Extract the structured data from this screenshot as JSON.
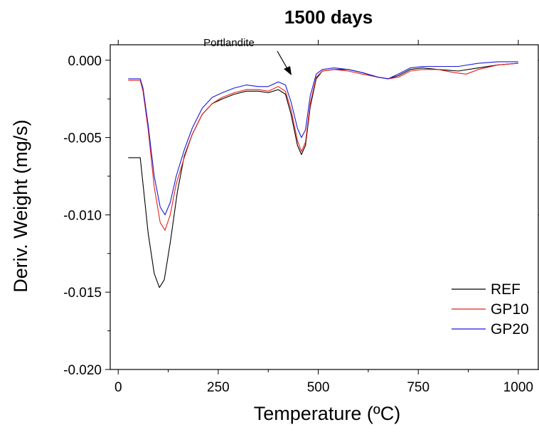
{
  "chart_data": {
    "type": "line",
    "title": "1500 days",
    "xlabel": "Temperature (ºC)",
    "ylabel": "Deriv. Weight (mg/s)",
    "xlim": [
      -20,
      1050
    ],
    "ylim": [
      -0.02,
      0.001
    ],
    "x_ticks": [
      0,
      250,
      500,
      750,
      1000
    ],
    "x_tick_labels": [
      "0",
      "250",
      "500",
      "750",
      "1000"
    ],
    "y_ticks": [
      0.0,
      -0.005,
      -0.01,
      -0.015,
      -0.02
    ],
    "y_tick_labels": [
      "0.000",
      "-0.005",
      "-0.010",
      "-0.015",
      "-0.020"
    ],
    "grid": false,
    "legend_position": "bottom-right",
    "annotation": {
      "text": "Portlandite",
      "x": 455,
      "y": -0.0016
    },
    "series": [
      {
        "name": "REF",
        "color": "#000000",
        "points": [
          [
            25,
            -0.0063
          ],
          [
            55,
            -0.0063
          ],
          [
            62,
            -0.008
          ],
          [
            75,
            -0.0112
          ],
          [
            90,
            -0.0138
          ],
          [
            103,
            -0.0147
          ],
          [
            115,
            -0.0142
          ],
          [
            130,
            -0.0118
          ],
          [
            148,
            -0.0085
          ],
          [
            165,
            -0.0062
          ],
          [
            185,
            -0.0048
          ],
          [
            210,
            -0.0035
          ],
          [
            235,
            -0.0028
          ],
          [
            260,
            -0.0025
          ],
          [
            290,
            -0.0022
          ],
          [
            320,
            -0.002
          ],
          [
            350,
            -0.002
          ],
          [
            375,
            -0.0021
          ],
          [
            400,
            -0.0019
          ],
          [
            418,
            -0.0022
          ],
          [
            432,
            -0.0035
          ],
          [
            448,
            -0.0055
          ],
          [
            458,
            -0.0061
          ],
          [
            468,
            -0.0055
          ],
          [
            480,
            -0.003
          ],
          [
            495,
            -0.0012
          ],
          [
            510,
            -0.0007
          ],
          [
            540,
            -0.0006
          ],
          [
            575,
            -0.0006
          ],
          [
            610,
            -0.0008
          ],
          [
            650,
            -0.0011
          ],
          [
            675,
            -0.0012
          ],
          [
            700,
            -0.001
          ],
          [
            730,
            -0.0006
          ],
          [
            760,
            -0.0005
          ],
          [
            800,
            -0.0006
          ],
          [
            850,
            -0.0007
          ],
          [
            900,
            -0.0005
          ],
          [
            950,
            -0.0003
          ],
          [
            1000,
            -0.0002
          ]
        ]
      },
      {
        "name": "GP10",
        "color": "#e8201a",
        "points": [
          [
            25,
            -0.0013
          ],
          [
            55,
            -0.0013
          ],
          [
            62,
            -0.002
          ],
          [
            75,
            -0.0045
          ],
          [
            90,
            -0.0082
          ],
          [
            105,
            -0.0105
          ],
          [
            117,
            -0.011
          ],
          [
            130,
            -0.01
          ],
          [
            145,
            -0.008
          ],
          [
            165,
            -0.0063
          ],
          [
            185,
            -0.0048
          ],
          [
            210,
            -0.0035
          ],
          [
            235,
            -0.0028
          ],
          [
            260,
            -0.0024
          ],
          [
            290,
            -0.0021
          ],
          [
            320,
            -0.0019
          ],
          [
            350,
            -0.0019
          ],
          [
            375,
            -0.002
          ],
          [
            400,
            -0.0017
          ],
          [
            418,
            -0.002
          ],
          [
            432,
            -0.0032
          ],
          [
            448,
            -0.0052
          ],
          [
            458,
            -0.0059
          ],
          [
            468,
            -0.0053
          ],
          [
            480,
            -0.0028
          ],
          [
            495,
            -0.0011
          ],
          [
            510,
            -0.0007
          ],
          [
            540,
            -0.0006
          ],
          [
            575,
            -0.0007
          ],
          [
            610,
            -0.0009
          ],
          [
            650,
            -0.0011
          ],
          [
            675,
            -0.0012
          ],
          [
            700,
            -0.0011
          ],
          [
            730,
            -0.0007
          ],
          [
            760,
            -0.0006
          ],
          [
            800,
            -0.0006
          ],
          [
            840,
            -0.0008
          ],
          [
            870,
            -0.0009
          ],
          [
            900,
            -0.0006
          ],
          [
            950,
            -0.0003
          ],
          [
            1000,
            -0.0002
          ]
        ]
      },
      {
        "name": "GP20",
        "color": "#1a1adb",
        "points": [
          [
            25,
            -0.0012
          ],
          [
            55,
            -0.0012
          ],
          [
            62,
            -0.0018
          ],
          [
            75,
            -0.0042
          ],
          [
            90,
            -0.0075
          ],
          [
            105,
            -0.0095
          ],
          [
            117,
            -0.01
          ],
          [
            130,
            -0.0092
          ],
          [
            145,
            -0.0075
          ],
          [
            165,
            -0.0058
          ],
          [
            185,
            -0.0044
          ],
          [
            210,
            -0.0031
          ],
          [
            235,
            -0.0024
          ],
          [
            260,
            -0.0021
          ],
          [
            290,
            -0.0018
          ],
          [
            320,
            -0.0016
          ],
          [
            350,
            -0.0017
          ],
          [
            375,
            -0.0017
          ],
          [
            400,
            -0.0014
          ],
          [
            418,
            -0.0016
          ],
          [
            432,
            -0.0027
          ],
          [
            448,
            -0.0044
          ],
          [
            458,
            -0.005
          ],
          [
            468,
            -0.0045
          ],
          [
            480,
            -0.0023
          ],
          [
            495,
            -0.0009
          ],
          [
            510,
            -0.0006
          ],
          [
            540,
            -0.0005
          ],
          [
            575,
            -0.0006
          ],
          [
            610,
            -0.0008
          ],
          [
            650,
            -0.0011
          ],
          [
            675,
            -0.0012
          ],
          [
            700,
            -0.0009
          ],
          [
            730,
            -0.0005
          ],
          [
            760,
            -0.0004
          ],
          [
            800,
            -0.0004
          ],
          [
            850,
            -0.0004
          ],
          [
            900,
            -0.0002
          ],
          [
            950,
            -0.0001
          ],
          [
            1000,
            -0.0001
          ]
        ]
      }
    ]
  }
}
